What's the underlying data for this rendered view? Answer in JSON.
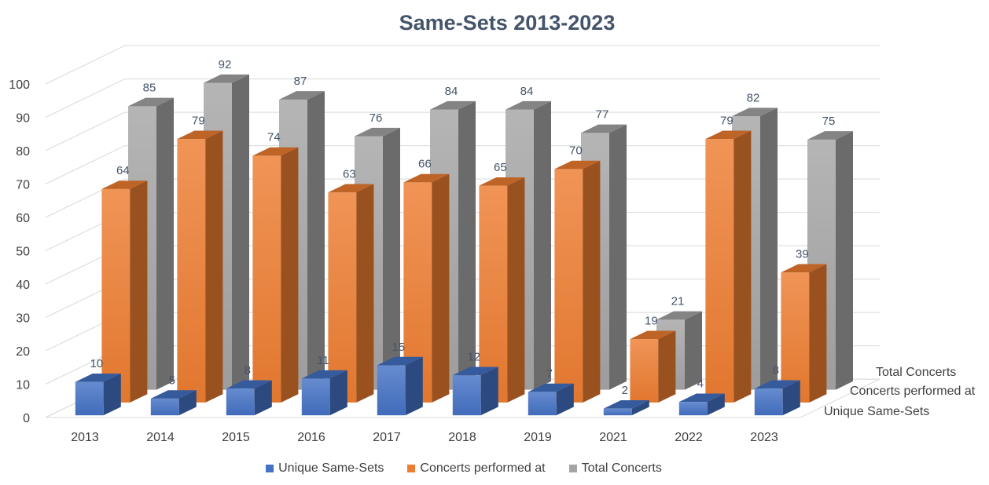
{
  "chart_data": {
    "type": "bar",
    "title": "Same-Sets 2013-2023",
    "categories": [
      "2013",
      "2014",
      "2015",
      "2016",
      "2017",
      "2018",
      "2019",
      "2021",
      "2022",
      "2023"
    ],
    "series": [
      {
        "name": "Unique Same-Sets",
        "values": [
          10,
          5,
          8,
          11,
          15,
          12,
          7,
          2,
          4,
          8
        ],
        "color": "#4472c4"
      },
      {
        "name": "Concerts performed at",
        "values": [
          64,
          79,
          74,
          63,
          66,
          65,
          70,
          19,
          79,
          39
        ],
        "color": "#ed7d31"
      },
      {
        "name": "Total Concerts",
        "values": [
          85,
          92,
          87,
          76,
          84,
          84,
          77,
          21,
          82,
          75
        ],
        "color": "#a5a5a5"
      }
    ],
    "ylim": [
      0,
      100
    ],
    "yticks": [
      0,
      10,
      20,
      30,
      40,
      50,
      60,
      70,
      80,
      90,
      100
    ],
    "xlabel": "",
    "ylabel": "",
    "grid": true,
    "legend_position": "bottom",
    "style": "3d-column"
  }
}
